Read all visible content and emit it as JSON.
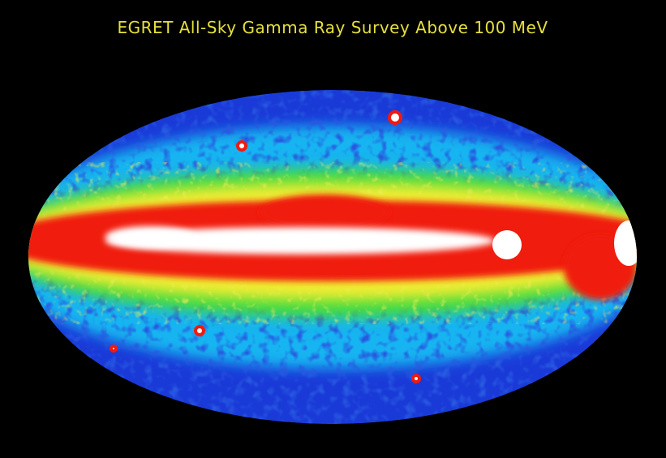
{
  "title": "EGRET All-Sky Gamma Ray Survey Above 100 MeV"
}
